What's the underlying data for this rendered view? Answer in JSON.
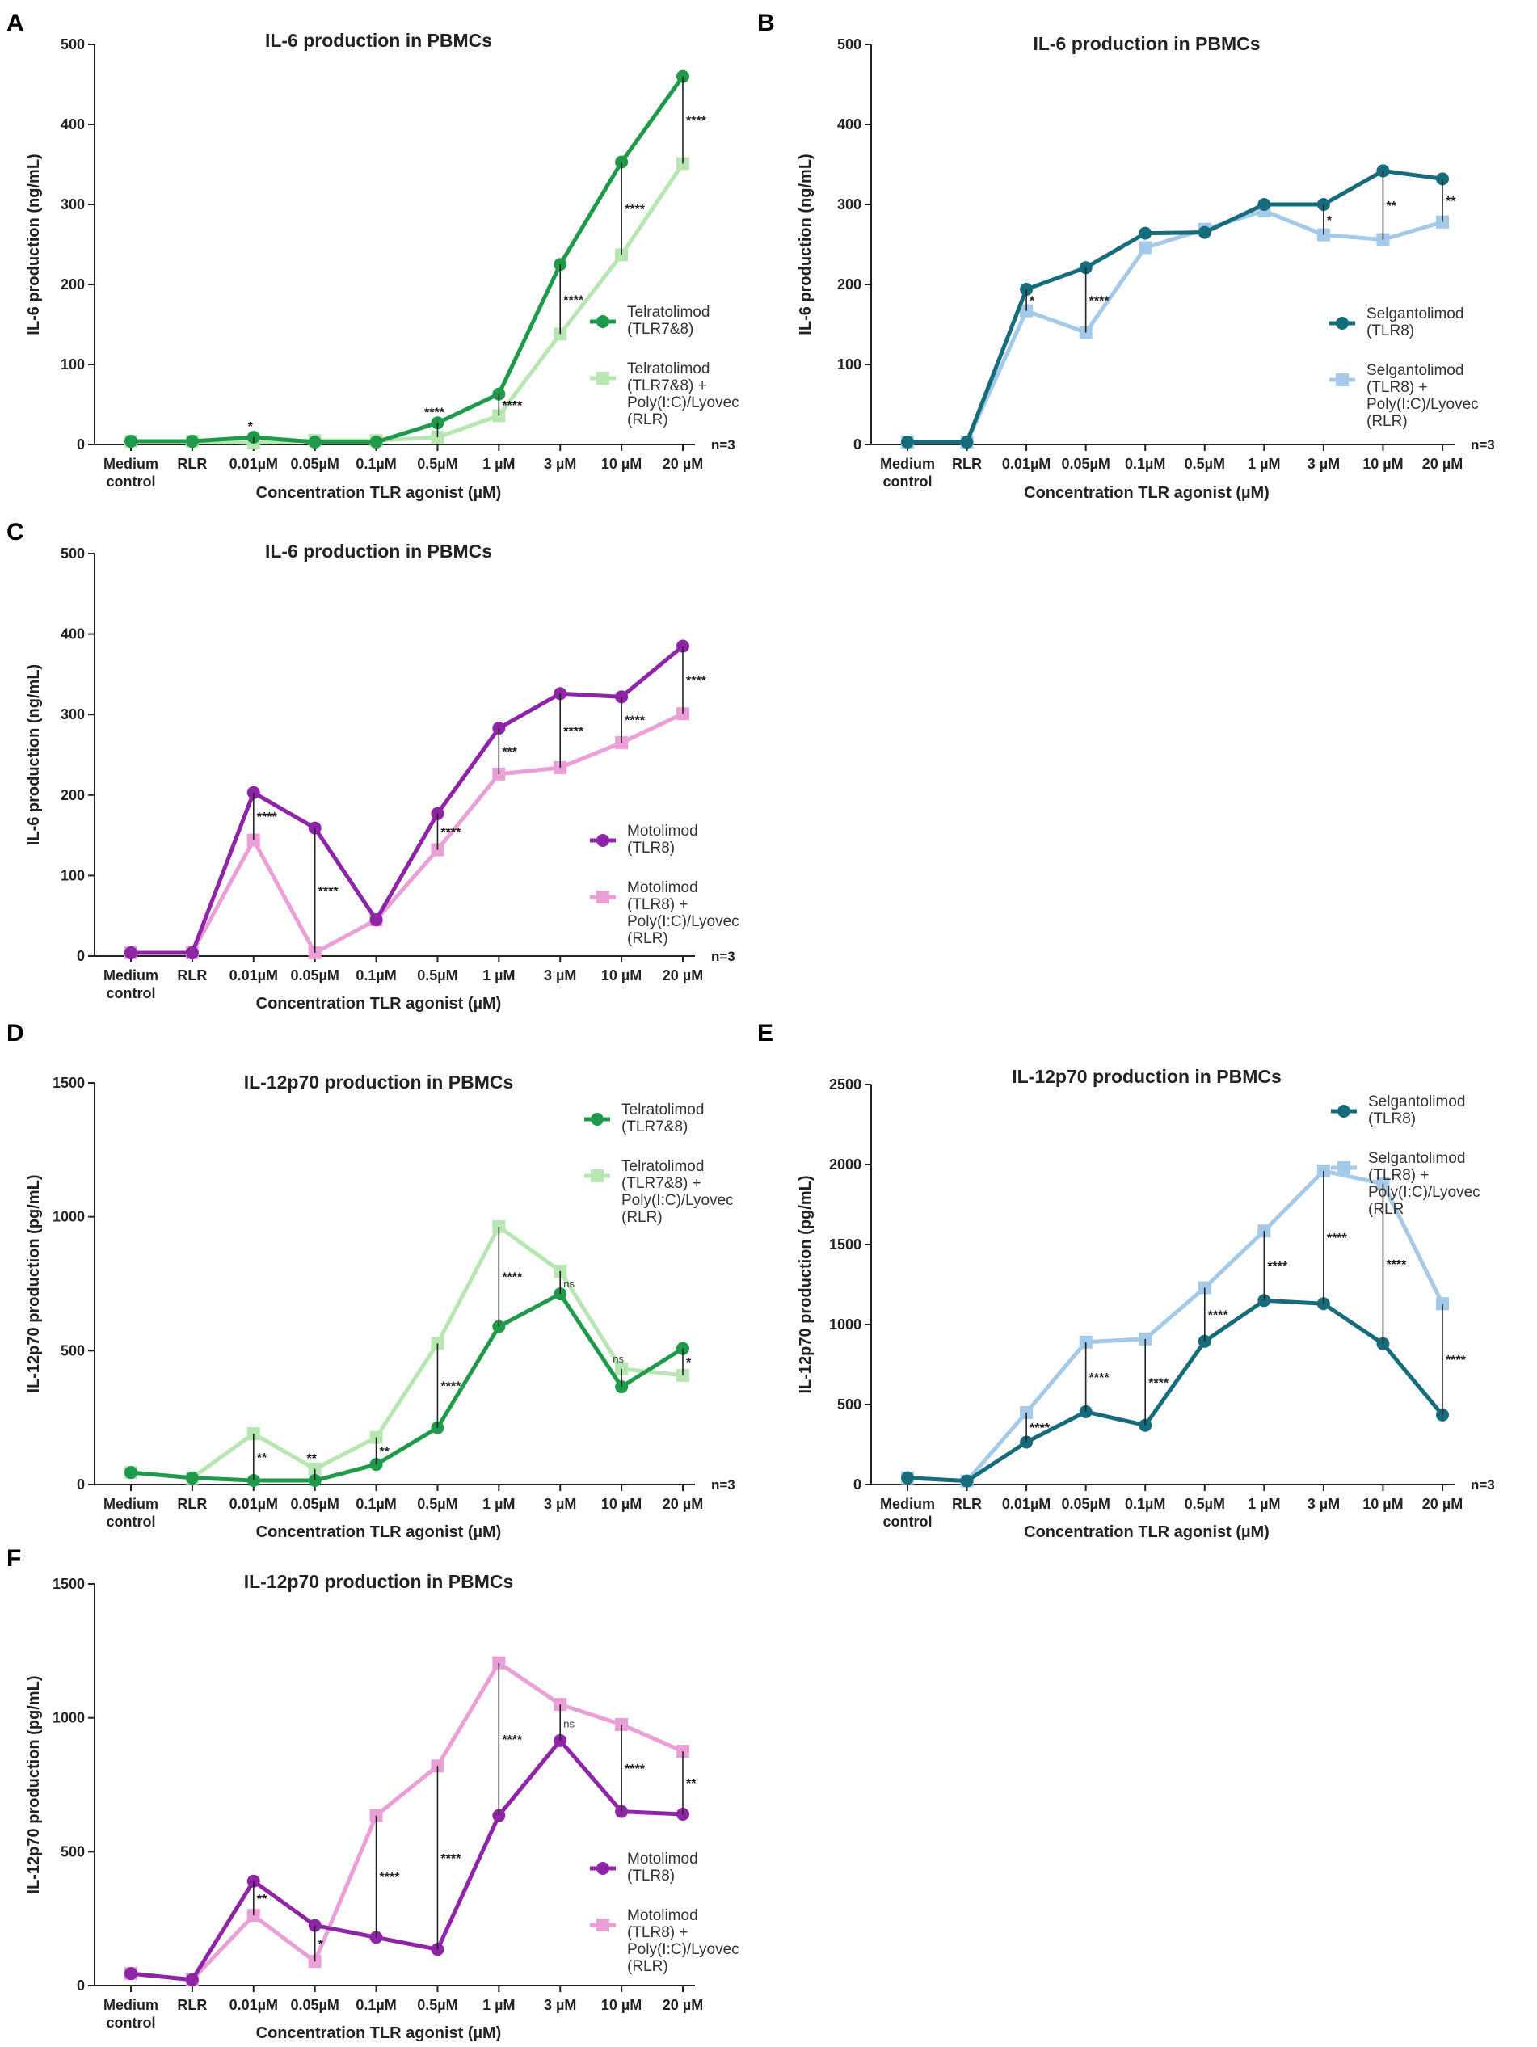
{
  "figure": {
    "x_axis_label": "Concentration TLR agonist (µM)",
    "n_label": "n=3"
  },
  "chart_data": [
    {
      "panel": "A",
      "type": "line",
      "title": "IL-6 production in PBMCs",
      "ylabel": "IL-6 production (ng/mL)",
      "xlabel": "Concentration TLR agonist (µM)",
      "categories": [
        [
          "Medium",
          "control"
        ],
        [
          "RLR"
        ],
        [
          "0.01µM"
        ],
        [
          "0.05µM"
        ],
        [
          "0.1µM"
        ],
        [
          "0.5µM"
        ],
        [
          "1 µM"
        ],
        [
          "3 µM"
        ],
        [
          "10 µM"
        ],
        [
          "20 µM"
        ]
      ],
      "ylim": [
        0,
        500
      ],
      "yticks": [
        0,
        100,
        200,
        300,
        400,
        500
      ],
      "legend_position": "right",
      "n_label": "n=3",
      "series": [
        {
          "name": [
            "Telratolimod",
            "(TLR7&8)"
          ],
          "color": "#1f9a4a",
          "marker": "circle",
          "values": [
            4,
            4,
            9,
            3,
            3,
            27,
            63,
            225,
            353,
            460
          ]
        },
        {
          "name": [
            "Telratolimod",
            "(TLR7&8) +",
            "Poly(I:C)/Lyovec",
            "(RLR)"
          ],
          "color": "#b8e6b3",
          "marker": "square",
          "values": [
            4,
            4,
            2,
            5,
            5,
            9,
            36,
            138,
            237,
            351
          ]
        }
      ],
      "significance": [
        {
          "index": 2,
          "label": "*",
          "top": 9,
          "bottom": 2
        },
        {
          "index": 5,
          "label": "****",
          "top": 27,
          "bottom": 9
        },
        {
          "index": 6,
          "label": "****",
          "top": 63,
          "bottom": 36
        },
        {
          "index": 7,
          "label": "****",
          "top": 225,
          "bottom": 138
        },
        {
          "index": 8,
          "label": "****",
          "top": 353,
          "bottom": 237
        },
        {
          "index": 9,
          "label": "****",
          "top": 460,
          "bottom": 351
        }
      ]
    },
    {
      "panel": "B",
      "type": "line",
      "title": "IL-6 production in PBMCs",
      "ylabel": "IL-6 production (ng/mL)",
      "xlabel": "Concentration TLR agonist (µM)",
      "categories": [
        [
          "Medium",
          "control"
        ],
        [
          "RLR"
        ],
        [
          "0.01µM"
        ],
        [
          "0.05µM"
        ],
        [
          "0.1µM"
        ],
        [
          "0.5µM"
        ],
        [
          "1 µM"
        ],
        [
          "3 µM"
        ],
        [
          "10 µM"
        ],
        [
          "20 µM"
        ]
      ],
      "ylim": [
        0,
        500
      ],
      "yticks": [
        0,
        100,
        200,
        300,
        400,
        500
      ],
      "legend_position": "right",
      "n_label": "n=3",
      "series": [
        {
          "name": [
            "Selgantolimod",
            "(TLR8)"
          ],
          "color": "#176c7c",
          "marker": "circle",
          "values": [
            3,
            3,
            194,
            221,
            264,
            265,
            300,
            300,
            342,
            332
          ]
        },
        {
          "name": [
            "Selgantolimod",
            "(TLR8) +",
            "Poly(I:C)/Lyovec",
            "(RLR)"
          ],
          "color": "#a4c9e9",
          "marker": "square",
          "values": [
            3,
            3,
            167,
            140,
            246,
            269,
            292,
            262,
            256,
            278
          ]
        }
      ],
      "significance": [
        {
          "index": 2,
          "label": "*",
          "top": 194,
          "bottom": 167
        },
        {
          "index": 3,
          "label": "****",
          "top": 221,
          "bottom": 140
        },
        {
          "index": 7,
          "label": "*",
          "top": 300,
          "bottom": 262
        },
        {
          "index": 8,
          "label": "**",
          "top": 342,
          "bottom": 256
        },
        {
          "index": 9,
          "label": "**",
          "top": 332,
          "bottom": 278
        }
      ]
    },
    {
      "panel": "C",
      "type": "line",
      "title": "IL-6 production in PBMCs",
      "ylabel": "IL-6 production (ng/mL)",
      "xlabel": "Concentration TLR agonist (µM)",
      "categories": [
        [
          "Medium",
          "control"
        ],
        [
          "RLR"
        ],
        [
          "0.01µM"
        ],
        [
          "0.05µM"
        ],
        [
          "0.1µM"
        ],
        [
          "0.5µM"
        ],
        [
          "1 µM"
        ],
        [
          "3 µM"
        ],
        [
          "10 µM"
        ],
        [
          "20 µM"
        ]
      ],
      "ylim": [
        0,
        500
      ],
      "yticks": [
        0,
        100,
        200,
        300,
        400,
        500
      ],
      "legend_position": "right",
      "n_label": "n=3",
      "series": [
        {
          "name": [
            "Motolimod",
            "(TLR8)"
          ],
          "color": "#8d25a6",
          "marker": "circle",
          "values": [
            4,
            4,
            203,
            159,
            45,
            177,
            283,
            326,
            322,
            385
          ]
        },
        {
          "name": [
            "Motolimod",
            "(TLR8) +",
            "Poly(I:C)/Lyovec",
            "(RLR)"
          ],
          "color": "#eaa0d6",
          "marker": "square",
          "values": [
            4,
            4,
            144,
            4,
            45,
            132,
            226,
            234,
            265,
            301
          ]
        }
      ],
      "significance": [
        {
          "index": 2,
          "label": "****",
          "top": 203,
          "bottom": 144
        },
        {
          "index": 3,
          "label": "****",
          "top": 159,
          "bottom": 4
        },
        {
          "index": 5,
          "label": "****",
          "top": 177,
          "bottom": 132
        },
        {
          "index": 6,
          "label": "***",
          "top": 283,
          "bottom": 226
        },
        {
          "index": 7,
          "label": "****",
          "top": 326,
          "bottom": 234
        },
        {
          "index": 8,
          "label": "****",
          "top": 322,
          "bottom": 265
        },
        {
          "index": 9,
          "label": "****",
          "top": 385,
          "bottom": 301
        }
      ]
    },
    {
      "panel": "D",
      "type": "line",
      "title": "IL-12p70 production in PBMCs",
      "ylabel": "IL-12p70 production (pg/mL)",
      "xlabel": "Concentration TLR agonist (µM)",
      "categories": [
        [
          "Medium",
          "control"
        ],
        [
          "RLR"
        ],
        [
          "0.01µM"
        ],
        [
          "0.05µM"
        ],
        [
          "0.1µM"
        ],
        [
          "0.5µM"
        ],
        [
          "1 µM"
        ],
        [
          "3 µM"
        ],
        [
          "10 µM"
        ],
        [
          "20 µM"
        ]
      ],
      "ylim": [
        0,
        1500
      ],
      "yticks": [
        0,
        500,
        1000,
        1500
      ],
      "legend_position": "top-right",
      "n_label": "n=3",
      "series": [
        {
          "name": [
            "Telratolimod",
            "(TLR7&8)"
          ],
          "color": "#1f9a4a",
          "marker": "circle",
          "values": [
            45,
            25,
            15,
            15,
            75,
            212,
            590,
            712,
            365,
            508
          ]
        },
        {
          "name": [
            "Telratolimod",
            "(TLR7&8) +",
            "Poly(I:C)/Lyovec",
            "(RLR)"
          ],
          "color": "#b8e6b3",
          "marker": "square",
          "values": [
            45,
            25,
            190,
            58,
            176,
            527,
            963,
            797,
            432,
            408
          ]
        }
      ],
      "significance": [
        {
          "index": 2,
          "label": "**",
          "top": 190,
          "bottom": 15
        },
        {
          "index": 3,
          "label": "**",
          "top": 58,
          "bottom": 15
        },
        {
          "index": 4,
          "label": "**",
          "top": 176,
          "bottom": 75
        },
        {
          "index": 5,
          "label": "****",
          "top": 527,
          "bottom": 212
        },
        {
          "index": 6,
          "label": "****",
          "top": 963,
          "bottom": 590
        },
        {
          "index": 7,
          "label": "ns",
          "top": 797,
          "bottom": 712
        },
        {
          "index": 8,
          "label": "ns",
          "top": 432,
          "bottom": 365
        },
        {
          "index": 9,
          "label": "*",
          "top": 508,
          "bottom": 408
        }
      ]
    },
    {
      "panel": "E",
      "type": "line",
      "title": "IL-12p70 production in PBMCs",
      "ylabel": "IL-12p70 production (pg/mL)",
      "xlabel": "Concentration TLR agonist (µM)",
      "categories": [
        [
          "Medium",
          "control"
        ],
        [
          "RLR"
        ],
        [
          "0.01µM"
        ],
        [
          "0.05µM"
        ],
        [
          "0.1µM"
        ],
        [
          "0.5µM"
        ],
        [
          "1 µM"
        ],
        [
          "3 µM"
        ],
        [
          "10 µM"
        ],
        [
          "20 µM"
        ]
      ],
      "ylim": [
        0,
        2500
      ],
      "yticks": [
        0,
        500,
        1000,
        1500,
        2000,
        2500
      ],
      "legend_position": "top-right",
      "n_label": "n=3",
      "series": [
        {
          "name": [
            "Selgantolimod",
            "(TLR8)"
          ],
          "color": "#176c7c",
          "marker": "circle",
          "values": [
            42,
            22,
            265,
            455,
            370,
            895,
            1150,
            1130,
            880,
            435
          ]
        },
        {
          "name": [
            "Selgantolimod",
            "(TLR8) +",
            "Poly(I:C)/Lyovec",
            "(RLR"
          ],
          "color": "#a4c9e9",
          "marker": "square",
          "values": [
            42,
            22,
            450,
            890,
            910,
            1230,
            1585,
            1960,
            1880,
            1130
          ]
        }
      ],
      "significance": [
        {
          "index": 2,
          "label": "****",
          "top": 450,
          "bottom": 265
        },
        {
          "index": 3,
          "label": "****",
          "top": 890,
          "bottom": 455
        },
        {
          "index": 4,
          "label": "****",
          "top": 910,
          "bottom": 370
        },
        {
          "index": 5,
          "label": "****",
          "top": 1230,
          "bottom": 895
        },
        {
          "index": 6,
          "label": "****",
          "top": 1585,
          "bottom": 1150
        },
        {
          "index": 7,
          "label": "****",
          "top": 1960,
          "bottom": 1130
        },
        {
          "index": 8,
          "label": "****",
          "top": 1880,
          "bottom": 880
        },
        {
          "index": 9,
          "label": "****",
          "top": 1130,
          "bottom": 435
        }
      ]
    },
    {
      "panel": "F",
      "type": "line",
      "title": "IL-12p70 production in PBMCs",
      "ylabel": "IL-12p70 production (pg/mL)",
      "xlabel": "Concentration TLR agonist (µM)",
      "categories": [
        [
          "Medium",
          "control"
        ],
        [
          "RLR"
        ],
        [
          "0.01µM"
        ],
        [
          "0.05µM"
        ],
        [
          "0.1µM"
        ],
        [
          "0.5µM"
        ],
        [
          "1 µM"
        ],
        [
          "3 µM"
        ],
        [
          "10 µM"
        ],
        [
          "20 µM"
        ]
      ],
      "ylim": [
        0,
        1500
      ],
      "yticks": [
        0,
        500,
        1000,
        1500
      ],
      "legend_position": "bottom-right",
      "n_label": "",
      "series": [
        {
          "name": [
            "Motolimod",
            "(TLR8)"
          ],
          "color": "#8d25a6",
          "marker": "circle",
          "values": [
            45,
            22,
            390,
            225,
            180,
            135,
            635,
            915,
            650,
            640
          ]
        },
        {
          "name": [
            "Motolimod",
            "(TLR8) +",
            "Poly(I:C)/Lyovec",
            "(RLR)"
          ],
          "color": "#eaa0d6",
          "marker": "square",
          "values": [
            45,
            22,
            262,
            90,
            635,
            820,
            1205,
            1050,
            975,
            875
          ]
        }
      ],
      "significance": [
        {
          "index": 2,
          "label": "**",
          "top": 390,
          "bottom": 262
        },
        {
          "index": 3,
          "label": "*",
          "top": 225,
          "bottom": 90
        },
        {
          "index": 4,
          "label": "****",
          "top": 635,
          "bottom": 180
        },
        {
          "index": 5,
          "label": "****",
          "top": 820,
          "bottom": 135
        },
        {
          "index": 6,
          "label": "****",
          "top": 1205,
          "bottom": 635
        },
        {
          "index": 7,
          "label": "ns",
          "top": 1050,
          "bottom": 915
        },
        {
          "index": 8,
          "label": "****",
          "top": 975,
          "bottom": 650
        },
        {
          "index": 9,
          "label": "**",
          "top": 875,
          "bottom": 640
        }
      ]
    }
  ]
}
